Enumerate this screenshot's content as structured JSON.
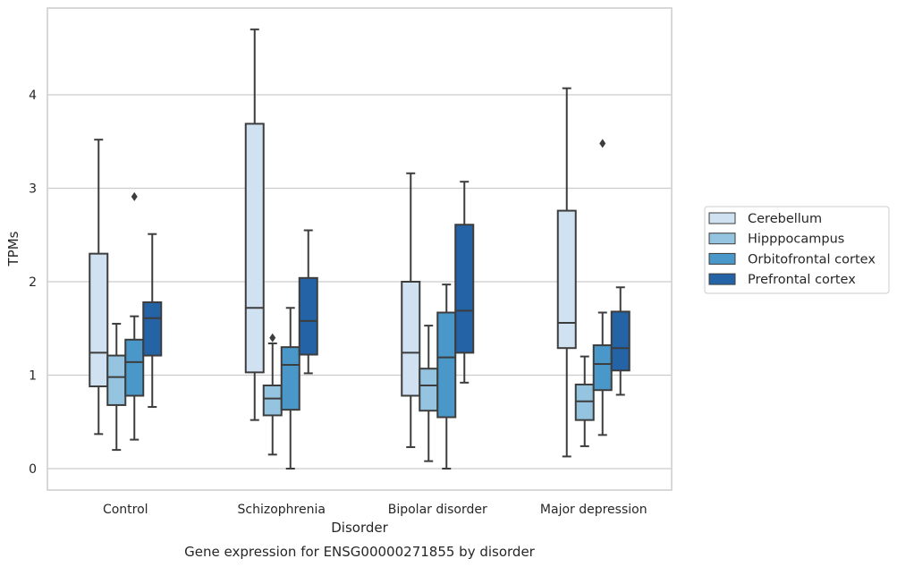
{
  "chart_data": {
    "type": "box",
    "xlabel": "Disorder",
    "ylabel": "TPMs",
    "caption": "Gene expression for ENSG00000271855 by disorder",
    "ylim": [
      -0.22,
      4.93
    ],
    "yticks": [
      0,
      1,
      2,
      3,
      4
    ],
    "grid": true,
    "legend_position": "right",
    "categories": [
      "Control",
      "Schizophrenia",
      "Bipolar disorder",
      "Major depression"
    ],
    "series": [
      {
        "name": "Cerebellum",
        "color": "#d0e1f2",
        "boxes": [
          {
            "whisker_low": 0.37,
            "q1": 0.88,
            "median": 1.24,
            "q3": 2.3,
            "whisker_high": 3.52,
            "outliers": []
          },
          {
            "whisker_low": 0.52,
            "q1": 1.03,
            "median": 1.72,
            "q3": 3.69,
            "whisker_high": 4.7,
            "outliers": []
          },
          {
            "whisker_low": 0.23,
            "q1": 0.78,
            "median": 1.24,
            "q3": 2.0,
            "whisker_high": 3.16,
            "outliers": []
          },
          {
            "whisker_low": 0.13,
            "q1": 1.29,
            "median": 1.56,
            "q3": 2.76,
            "whisker_high": 4.07,
            "outliers": []
          }
        ]
      },
      {
        "name": "Hipppocampus",
        "color": "#94c4df",
        "boxes": [
          {
            "whisker_low": 0.2,
            "q1": 0.68,
            "median": 0.98,
            "q3": 1.21,
            "whisker_high": 1.55,
            "outliers": []
          },
          {
            "whisker_low": 0.15,
            "q1": 0.57,
            "median": 0.75,
            "q3": 0.89,
            "whisker_high": 1.34,
            "outliers": [
              1.4
            ]
          },
          {
            "whisker_low": 0.08,
            "q1": 0.62,
            "median": 0.89,
            "q3": 1.07,
            "whisker_high": 1.53,
            "outliers": []
          },
          {
            "whisker_low": 0.24,
            "q1": 0.52,
            "median": 0.72,
            "q3": 0.9,
            "whisker_high": 1.2,
            "outliers": []
          }
        ]
      },
      {
        "name": "Orbitofrontal cortex",
        "color": "#4a98c9",
        "boxes": [
          {
            "whisker_low": 0.31,
            "q1": 0.78,
            "median": 1.14,
            "q3": 1.38,
            "whisker_high": 1.63,
            "outliers": [
              2.91
            ]
          },
          {
            "whisker_low": 0.0,
            "q1": 0.63,
            "median": 1.11,
            "q3": 1.3,
            "whisker_high": 1.72,
            "outliers": []
          },
          {
            "whisker_low": 0.0,
            "q1": 0.55,
            "median": 1.19,
            "q3": 1.67,
            "whisker_high": 1.97,
            "outliers": []
          },
          {
            "whisker_low": 0.36,
            "q1": 0.84,
            "median": 1.12,
            "q3": 1.32,
            "whisker_high": 1.67,
            "outliers": [
              3.48
            ]
          }
        ]
      },
      {
        "name": "Prefrontal cortex",
        "color": "#2363a6",
        "boxes": [
          {
            "whisker_low": 0.66,
            "q1": 1.21,
            "median": 1.61,
            "q3": 1.78,
            "whisker_high": 2.51,
            "outliers": []
          },
          {
            "whisker_low": 1.02,
            "q1": 1.22,
            "median": 1.58,
            "q3": 2.04,
            "whisker_high": 2.55,
            "outliers": []
          },
          {
            "whisker_low": 0.92,
            "q1": 1.24,
            "median": 1.69,
            "q3": 2.61,
            "whisker_high": 3.07,
            "outliers": []
          },
          {
            "whisker_low": 0.79,
            "q1": 1.05,
            "median": 1.29,
            "q3": 1.68,
            "whisker_high": 1.94,
            "outliers": []
          }
        ]
      }
    ]
  }
}
